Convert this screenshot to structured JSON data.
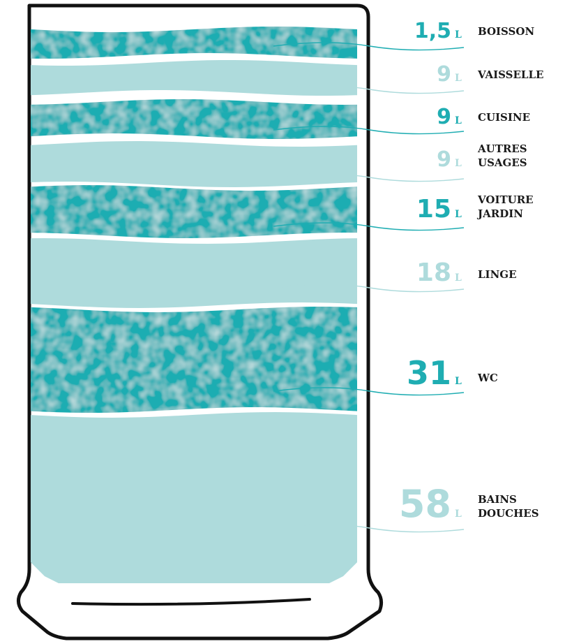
{
  "colors": {
    "dark": "#1fadb2",
    "light": "#aedbdc",
    "outline": "#111111"
  },
  "unit": "L",
  "layers": [
    {
      "value": "1,5",
      "tone": "dark",
      "label": [
        "BOISSON"
      ]
    },
    {
      "value": "9",
      "tone": "light",
      "label": [
        "VAISSELLE"
      ]
    },
    {
      "value": "9",
      "tone": "dark",
      "label": [
        "CUISINE"
      ]
    },
    {
      "value": "9",
      "tone": "light",
      "label": [
        "AUTRES",
        "USAGES"
      ]
    },
    {
      "value": "15",
      "tone": "dark",
      "label": [
        "VOITURE",
        "JARDIN"
      ]
    },
    {
      "value": "18",
      "tone": "light",
      "label": [
        "LINGE"
      ]
    },
    {
      "value": "31",
      "tone": "dark",
      "label": [
        "WC"
      ]
    },
    {
      "value": "58",
      "tone": "light",
      "label": [
        "BAINS",
        "DOUCHES"
      ]
    }
  ]
}
